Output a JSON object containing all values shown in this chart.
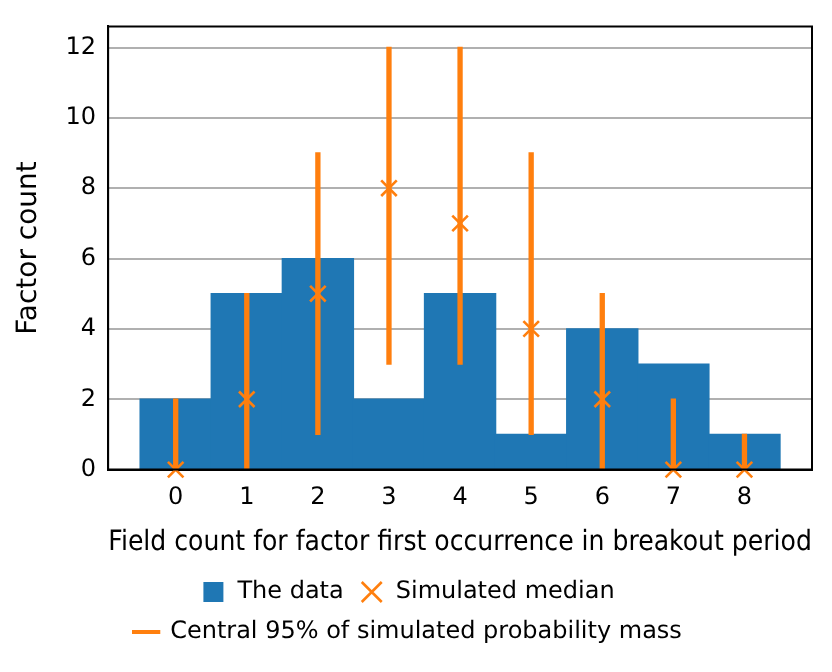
{
  "chart_data": {
    "type": "histogram",
    "xlabel": "Field count for factor first occurrence in breakout period",
    "ylabel": "Factor count",
    "bins": [
      -0.5,
      0.5,
      1.5,
      2.5,
      3.5,
      4.5,
      5.5,
      6.5,
      7.5,
      8.5
    ],
    "xlim": [
      -0.95,
      8.95
    ],
    "xticks": [
      0,
      1,
      2,
      3,
      4,
      5,
      6,
      7,
      8
    ],
    "ylim": [
      0,
      12.6
    ],
    "yticks": [
      0,
      2,
      4,
      6,
      8,
      10,
      12
    ],
    "grid": "y",
    "legend": "bottom",
    "series": [
      {
        "name": "The data",
        "color": "#1f77b4",
        "values": [
          2,
          5,
          6,
          2,
          5,
          1,
          4,
          3,
          1
        ]
      },
      {
        "name": "Simulated median",
        "type": "scatter",
        "color": "#ff7f0e",
        "marker": "cross",
        "x": [
          0,
          1,
          2,
          3,
          4,
          5,
          6,
          7,
          8
        ],
        "values": [
          0,
          2,
          5,
          8,
          7,
          4,
          2,
          0,
          0
        ]
      },
      {
        "name": "Central 95% of simulated probability mass",
        "type": "bar",
        "color": "#ff7f0e",
        "x": [
          0,
          1,
          2,
          3,
          4,
          5,
          6,
          7,
          8
        ],
        "base": [
          0,
          0,
          1,
          3,
          3,
          1,
          0,
          0,
          0
        ],
        "values": [
          2,
          5,
          8,
          9,
          9,
          8,
          5,
          2,
          1
        ]
      }
    ]
  }
}
